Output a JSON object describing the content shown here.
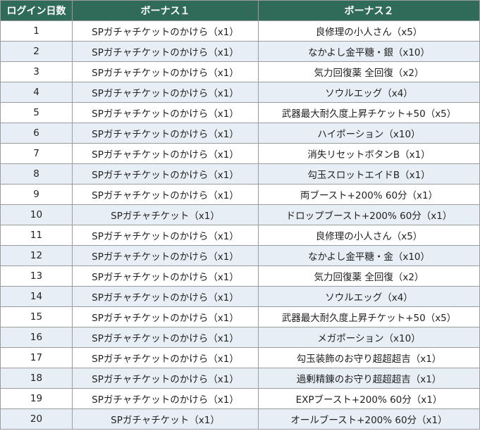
{
  "colors": {
    "header_bg": "#2f6b58",
    "header_text": "#ffffff",
    "row_alt_bg": "#e8eef5",
    "row_bg": "#ffffff",
    "border": "#9c9c9c"
  },
  "table": {
    "headers": [
      "ログイン日数",
      "ボーナス１",
      "ボーナス２"
    ],
    "rows": [
      {
        "day": "1",
        "bonus1": "SPガチャチケットのかけら（x1）",
        "bonus2": "良修理の小人さん（x5）"
      },
      {
        "day": "2",
        "bonus1": "SPガチャチケットのかけら（x1）",
        "bonus2": "なかよし金平糖・銀（x10）"
      },
      {
        "day": "3",
        "bonus1": "SPガチャチケットのかけら（x1）",
        "bonus2": "気力回復薬 全回復（x2）"
      },
      {
        "day": "4",
        "bonus1": "SPガチャチケットのかけら（x1）",
        "bonus2": "ソウルエッグ（x4）"
      },
      {
        "day": "5",
        "bonus1": "SPガチャチケットのかけら（x1）",
        "bonus2": "武器最大耐久度上昇チケット+50（x5）"
      },
      {
        "day": "6",
        "bonus1": "SPガチャチケットのかけら（x1）",
        "bonus2": "ハイポーション（x10）"
      },
      {
        "day": "7",
        "bonus1": "SPガチャチケットのかけら（x1）",
        "bonus2": "消失リセットボタンB（x1）"
      },
      {
        "day": "8",
        "bonus1": "SPガチャチケットのかけら（x1）",
        "bonus2": "勾玉スロットエイドB（x1）"
      },
      {
        "day": "9",
        "bonus1": "SPガチャチケットのかけら（x1）",
        "bonus2": "両ブースト+200% 60分（x1）"
      },
      {
        "day": "10",
        "bonus1": "SPガチャチケット（x1）",
        "bonus2": "ドロップブースト+200% 60分（x1）"
      },
      {
        "day": "11",
        "bonus1": "SPガチャチケットのかけら（x1）",
        "bonus2": "良修理の小人さん（x5）"
      },
      {
        "day": "12",
        "bonus1": "SPガチャチケットのかけら（x1）",
        "bonus2": "なかよし金平糖・金（x10）"
      },
      {
        "day": "13",
        "bonus1": "SPガチャチケットのかけら（x1）",
        "bonus2": "気力回復薬 全回復（x2）"
      },
      {
        "day": "14",
        "bonus1": "SPガチャチケットのかけら（x1）",
        "bonus2": "ソウルエッグ（x4）"
      },
      {
        "day": "15",
        "bonus1": "SPガチャチケットのかけら（x1）",
        "bonus2": "武器最大耐久度上昇チケット+50（x5）"
      },
      {
        "day": "16",
        "bonus1": "SPガチャチケットのかけら（x1）",
        "bonus2": "メガポーション（x10）"
      },
      {
        "day": "17",
        "bonus1": "SPガチャチケットのかけら（x1）",
        "bonus2": "勾玉装飾のお守り超超超吉（x1）"
      },
      {
        "day": "18",
        "bonus1": "SPガチャチケットのかけら（x1）",
        "bonus2": "過剰精錬のお守り超超超吉（x1）"
      },
      {
        "day": "19",
        "bonus1": "SPガチャチケットのかけら（x1）",
        "bonus2": "EXPブースト+200% 60分（x1）"
      },
      {
        "day": "20",
        "bonus1": "SPガチャチケット（x1）",
        "bonus2": "オールブースト+200% 60分（x1）"
      }
    ]
  }
}
